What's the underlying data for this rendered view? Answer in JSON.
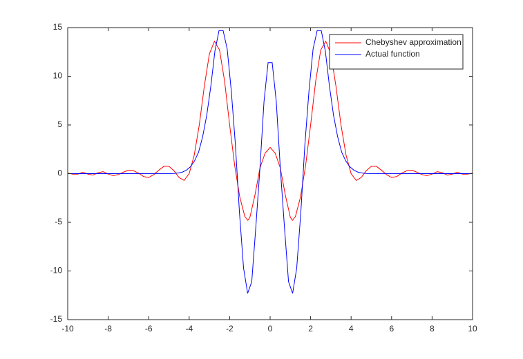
{
  "chart_data": {
    "type": "line",
    "xlim": [
      -10,
      10
    ],
    "ylim": [
      -15,
      15
    ],
    "xticks": [
      -10,
      -8,
      -6,
      -4,
      -2,
      0,
      2,
      4,
      6,
      8,
      10
    ],
    "yticks": [
      -15,
      -10,
      -5,
      0,
      5,
      10,
      15
    ],
    "grid": false,
    "legend": "northeast",
    "series": [
      {
        "name": "Chebyshev approximation",
        "color": "#ff0000",
        "x": [
          -10,
          -9.75,
          -9.5,
          -9.25,
          -9,
          -8.75,
          -8.5,
          -8.25,
          -8,
          -7.75,
          -7.5,
          -7.25,
          -7,
          -6.75,
          -6.5,
          -6.25,
          -6,
          -5.75,
          -5.5,
          -5.25,
          -5,
          -4.75,
          -4.5,
          -4.25,
          -4,
          -3.75,
          -3.5,
          -3.25,
          -3,
          -2.75,
          -2.5,
          -2.25,
          -2,
          -1.75,
          -1.5,
          -1.25,
          -1.1,
          -1,
          -0.75,
          -0.5,
          -0.25,
          0,
          0.25,
          0.5,
          0.75,
          1,
          1.1,
          1.25,
          1.5,
          1.75,
          2,
          2.25,
          2.5,
          2.75,
          3,
          3.25,
          3.5,
          3.75,
          4,
          4.25,
          4.5,
          4.75,
          5,
          5.25,
          5.5,
          5.75,
          6,
          6.25,
          6.5,
          6.75,
          7,
          7.25,
          7.5,
          7.75,
          8,
          8.25,
          8.5,
          8.75,
          9,
          9.25,
          9.5,
          9.75,
          10
        ],
        "values": [
          0.05,
          -0.05,
          -0.05,
          0.15,
          -0.05,
          -0.15,
          0.1,
          0.2,
          -0.05,
          -0.2,
          -0.1,
          0.15,
          0.35,
          0.3,
          0.05,
          -0.3,
          -0.4,
          -0.1,
          0.35,
          0.75,
          0.75,
          0.3,
          -0.4,
          -0.7,
          0,
          1.9,
          5,
          9,
          12.3,
          13.6,
          12.7,
          9.5,
          5,
          0.8,
          -2.4,
          -4.4,
          -4.8,
          -4.5,
          -2.2,
          0.6,
          2.1,
          2.7,
          2.1,
          0.6,
          -2.2,
          -4.5,
          -4.8,
          -4.4,
          -2.4,
          0.8,
          5,
          9.5,
          12.7,
          13.6,
          12.3,
          9,
          5,
          1.9,
          0,
          -0.7,
          -0.4,
          0.3,
          0.75,
          0.75,
          0.35,
          -0.1,
          -0.4,
          -0.3,
          0.05,
          0.3,
          0.35,
          0.15,
          -0.1,
          -0.2,
          -0.05,
          0.2,
          0.1,
          -0.15,
          -0.05,
          0.15,
          -0.05,
          -0.05,
          0.05
        ]
      },
      {
        "name": "Actual function",
        "color": "#0000ff",
        "x": [
          -10,
          -4.949,
          -4.747,
          -4.545,
          -4.343,
          -4.141,
          -3.939,
          -3.737,
          -3.535,
          -3.333,
          -3.131,
          -2.929,
          -2.727,
          -2.525,
          -2.323,
          -2.121,
          -1.919,
          -1.717,
          -1.515,
          -1.313,
          -1.111,
          -0.909,
          -0.707,
          -0.505,
          -0.303,
          -0.101,
          0.101,
          0.303,
          0.505,
          0.707,
          0.909,
          1.111,
          1.313,
          1.515,
          1.717,
          1.919,
          2.121,
          2.323,
          2.525,
          2.727,
          2.929,
          3.131,
          3.333,
          3.535,
          3.737,
          3.939,
          4.141,
          4.343,
          4.545,
          4.747,
          4.949,
          10
        ],
        "values": [
          0,
          0.01,
          0.02,
          0.06,
          0.15,
          0.35,
          0.7,
          1.3,
          2.2,
          3.8,
          6,
          9,
          12.6,
          14.7,
          14.7,
          12.8,
          8.5,
          3,
          -4,
          -9.7,
          -12.3,
          -11.1,
          -5.5,
          0.5,
          7.4,
          11.4,
          11.4,
          7.4,
          0.5,
          -5.5,
          -11.1,
          -12.3,
          -9.7,
          -4,
          3,
          8.5,
          12.8,
          14.7,
          14.7,
          12.6,
          9,
          6,
          3.8,
          2.2,
          1.3,
          0.7,
          0.35,
          0.15,
          0.06,
          0.02,
          0.01,
          0
        ]
      }
    ]
  }
}
